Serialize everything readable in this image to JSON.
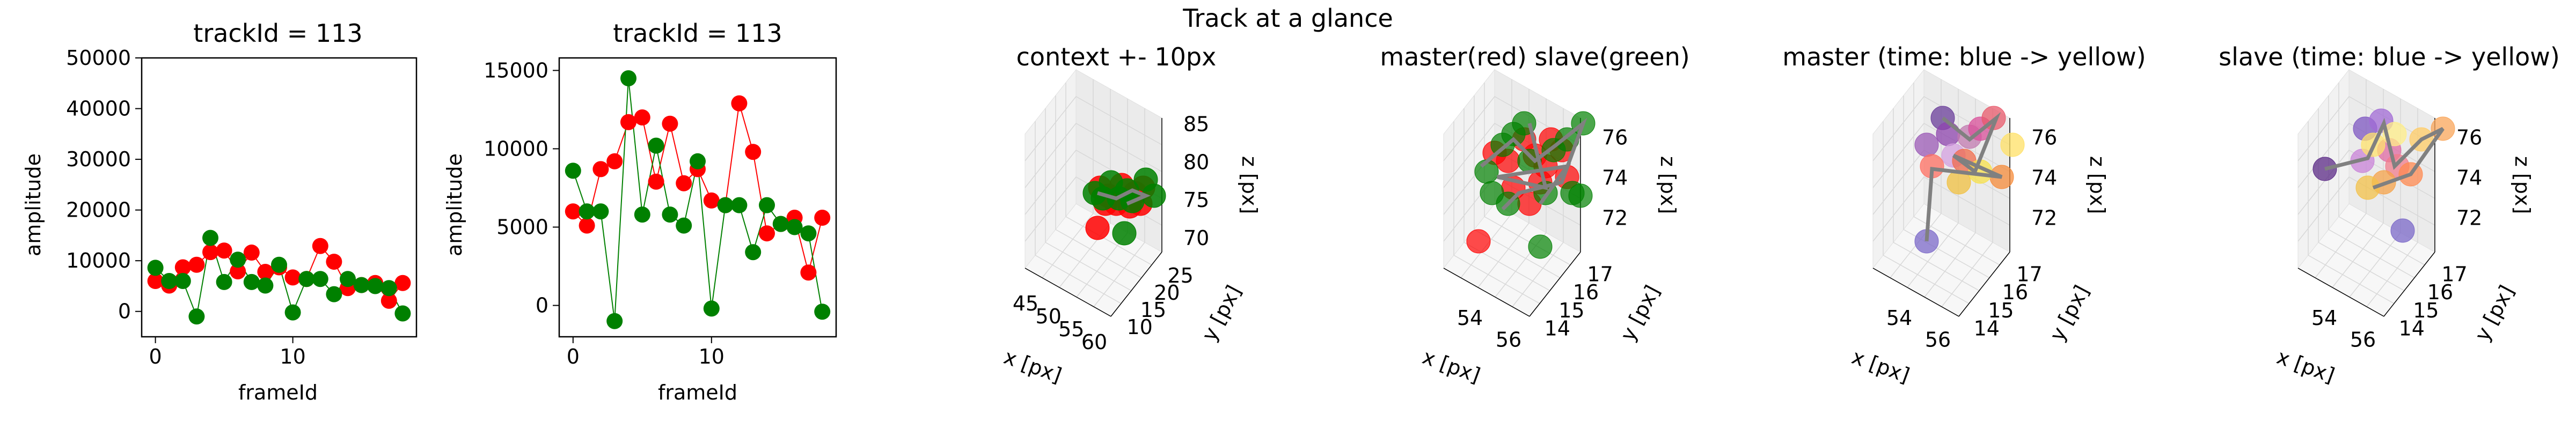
{
  "suptitle": "Track at a glance",
  "colors": {
    "master": "#ff0000",
    "slave": "#008000",
    "line_master": "#ff0000",
    "line_slave": "#008000",
    "track_line": "#808080"
  },
  "chart_data": [
    {
      "type": "line",
      "title": "trackId = 113",
      "xlabel": "frameId",
      "ylabel": "amplitude",
      "xlim": [
        -1,
        19
      ],
      "ylim": [
        -5000,
        50000
      ],
      "xticks": [
        0,
        10
      ],
      "yticks": [
        0,
        10000,
        20000,
        30000,
        40000,
        50000
      ],
      "series": [
        {
          "color": "#ff0000",
          "x": [
            0,
            1,
            2,
            3,
            4,
            5,
            6,
            7,
            8,
            9,
            10,
            11,
            12,
            13,
            14,
            15,
            16,
            17,
            18
          ],
          "values": [
            6000,
            5100,
            8700,
            9200,
            11700,
            12000,
            7900,
            11600,
            7800,
            8700,
            6700,
            6400,
            12900,
            9800,
            4600,
            5200,
            5600,
            2100,
            5600
          ]
        },
        {
          "color": "#008000",
          "x": [
            0,
            1,
            2,
            3,
            4,
            5,
            6,
            7,
            8,
            9,
            10,
            11,
            12,
            13,
            14,
            15,
            16,
            17,
            18
          ],
          "values": [
            8600,
            6000,
            6000,
            -1000,
            14500,
            5800,
            10200,
            5800,
            5100,
            9200,
            -200,
            6400,
            6400,
            3400,
            6400,
            5200,
            5000,
            4600,
            -400
          ]
        }
      ]
    },
    {
      "type": "line",
      "title": "trackId = 113",
      "xlabel": "frameId",
      "ylabel": "amplitude",
      "xlim": [
        -1,
        19
      ],
      "ylim": [
        -2000,
        15800
      ],
      "xticks": [
        0,
        10
      ],
      "yticks": [
        0,
        5000,
        10000,
        15000
      ],
      "series": [
        {
          "color": "#ff0000",
          "x": [
            0,
            1,
            2,
            3,
            4,
            5,
            6,
            7,
            8,
            9,
            10,
            11,
            12,
            13,
            14,
            15,
            16,
            17,
            18
          ],
          "values": [
            6000,
            5100,
            8700,
            9200,
            11700,
            12000,
            7900,
            11600,
            7800,
            8700,
            6700,
            6400,
            12900,
            9800,
            4600,
            5200,
            5600,
            2100,
            5600
          ]
        },
        {
          "color": "#008000",
          "x": [
            0,
            1,
            2,
            3,
            4,
            5,
            6,
            7,
            8,
            9,
            10,
            11,
            12,
            13,
            14,
            15,
            16,
            17,
            18
          ],
          "values": [
            8600,
            6000,
            6000,
            -1000,
            14500,
            5800,
            10200,
            5800,
            5100,
            9200,
            -200,
            6400,
            6400,
            3400,
            6400,
            5200,
            5000,
            4600,
            -400
          ]
        }
      ]
    },
    {
      "type": "scatter3d",
      "title": "context +- 10px",
      "xlabel": "x [px]",
      "ylabel": "y [px]",
      "zlabel": "z [px]",
      "xticks": [
        "45",
        "50",
        "55",
        "60"
      ],
      "yticks": [
        "10",
        "15",
        "20",
        "25"
      ],
      "zticks": [
        "70",
        "75",
        "80",
        "85"
      ]
    },
    {
      "type": "scatter3d",
      "title": "master(red) slave(green)",
      "xlabel": "x [px]",
      "ylabel": "y [px]",
      "zlabel": "z [px]",
      "xticks": [
        "54",
        "56"
      ],
      "yticks": [
        "14",
        "15",
        "16",
        "17"
      ],
      "zticks": [
        "72",
        "74",
        "76"
      ]
    },
    {
      "type": "scatter3d",
      "title": "master (time: blue -> yellow)",
      "xlabel": "x [px]",
      "ylabel": "y [px]",
      "zlabel": "z [px]",
      "xticks": [
        "54",
        "56"
      ],
      "yticks": [
        "14",
        "15",
        "16",
        "17"
      ],
      "zticks": [
        "72",
        "74",
        "76"
      ]
    },
    {
      "type": "scatter3d",
      "title": "slave (time: blue -> yellow)",
      "xlabel": "x [px]",
      "ylabel": "y [px]",
      "zlabel": "z [px]",
      "xticks": [
        "54",
        "56"
      ],
      "yticks": [
        "14",
        "15",
        "16",
        "17"
      ],
      "zticks": [
        "72",
        "74",
        "76"
      ]
    }
  ]
}
